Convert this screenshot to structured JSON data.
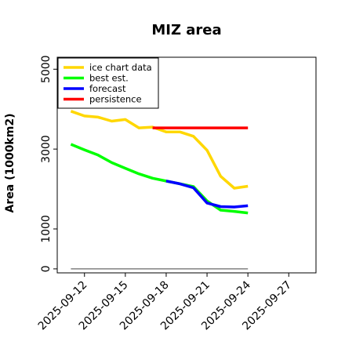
{
  "chart_data": {
    "type": "line",
    "title": "MIZ area",
    "xlabel": "",
    "ylabel": "Area (1000km2)",
    "ylim": [
      -100,
      5300
    ],
    "xlim": [
      "2025-09-10",
      "2025-09-29"
    ],
    "yticks": [
      0,
      1000,
      3000,
      5000
    ],
    "xticks": [
      "2025-09-12",
      "2025-09-15",
      "2025-09-18",
      "2025-09-21",
      "2025-09-24",
      "2025-09-27"
    ],
    "highlighted_xtick": "2025-09-18",
    "highlight_color": "#228b22",
    "grid": false,
    "legend_position": "top-left",
    "series": [
      {
        "name": "ice chart data",
        "color": "#ffd700",
        "x": [
          "2025-09-11",
          "2025-09-12",
          "2025-09-13",
          "2025-09-14",
          "2025-09-15",
          "2025-09-16",
          "2025-09-17",
          "2025-09-18",
          "2025-09-19",
          "2025-09-20",
          "2025-09-21",
          "2025-09-22",
          "2025-09-23",
          "2025-09-24"
        ],
        "values": [
          3950,
          3830,
          3800,
          3700,
          3740,
          3530,
          3550,
          3430,
          3430,
          3320,
          2970,
          2320,
          2020,
          2070
        ]
      },
      {
        "name": "best est.",
        "color": "#00ff00",
        "x": [
          "2025-09-11",
          "2025-09-12",
          "2025-09-13",
          "2025-09-14",
          "2025-09-15",
          "2025-09-16",
          "2025-09-17",
          "2025-09-18",
          "2025-09-19",
          "2025-09-20",
          "2025-09-21",
          "2025-09-22",
          "2025-09-23",
          "2025-09-24"
        ],
        "values": [
          3120,
          2980,
          2850,
          2660,
          2520,
          2380,
          2270,
          2200,
          2130,
          2060,
          1700,
          1470,
          1440,
          1400
        ]
      },
      {
        "name": "forecast",
        "color": "#0000ff",
        "x": [
          "2025-09-18",
          "2025-09-19",
          "2025-09-20",
          "2025-09-21",
          "2025-09-22",
          "2025-09-23",
          "2025-09-24"
        ],
        "values": [
          2200,
          2130,
          2030,
          1650,
          1560,
          1550,
          1580
        ]
      },
      {
        "name": "persistence",
        "color": "#ff0000",
        "x": [
          "2025-09-17",
          "2025-09-24"
        ],
        "values": [
          3530,
          3530
        ]
      },
      {
        "name": "",
        "color": "#808080",
        "x": [
          "2025-09-11",
          "2025-09-24"
        ],
        "values": [
          0,
          0
        ]
      }
    ]
  }
}
